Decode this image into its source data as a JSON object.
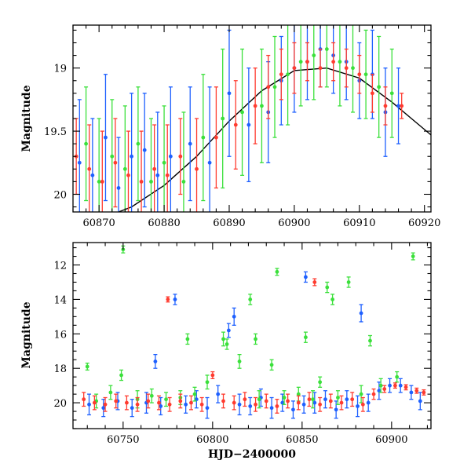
{
  "chart_data": [
    {
      "type": "scatter",
      "title": "",
      "xlabel": "",
      "ylabel": "Magnitude",
      "xlim": [
        60866,
        60921
      ],
      "ylim": [
        20.14,
        18.66
      ],
      "y_inverted": true,
      "xticks": [
        60870,
        60880,
        60890,
        60900,
        60910,
        60920
      ],
      "yticks": [
        19,
        19.5,
        20
      ],
      "ytick_labels": [
        "19",
        "19.5",
        "20"
      ],
      "error_bars": true,
      "grid": false,
      "legend": "none",
      "model_curve": {
        "color": "#000000",
        "x": [
          60866,
          60870,
          60875,
          60880,
          60885,
          60890,
          60895,
          60900,
          60905,
          60910,
          60915,
          60918,
          60921
        ],
        "y": [
          20.26,
          20.2,
          20.1,
          19.93,
          19.7,
          19.42,
          19.18,
          19.02,
          19.0,
          19.08,
          19.27,
          19.4,
          19.53
        ]
      },
      "series": [
        {
          "color": "#1e60ff",
          "x": [
            60867,
            60869,
            60871,
            60873,
            60875,
            60877,
            60879,
            60881,
            60884,
            60887,
            60890,
            60893,
            60896,
            60898,
            60900,
            60902,
            60904,
            60906,
            60908,
            60910,
            60912,
            60914,
            60916
          ],
          "y": [
            19.75,
            19.85,
            19.55,
            19.95,
            19.7,
            19.65,
            19.85,
            19.7,
            19.6,
            19.75,
            19.2,
            19.45,
            19.35,
            19.1,
            19.0,
            18.95,
            18.85,
            18.9,
            18.95,
            19.1,
            19.05,
            19.35,
            19.3
          ],
          "err": [
            0.5,
            0.45,
            0.5,
            0.4,
            0.5,
            0.45,
            0.5,
            0.55,
            0.45,
            0.6,
            0.5,
            0.45,
            0.4,
            0.35,
            0.35,
            0.3,
            0.3,
            0.3,
            0.3,
            0.3,
            0.35,
            0.35,
            0.3
          ]
        },
        {
          "color": "#3be03b",
          "x": [
            60868,
            60870,
            60872,
            60874,
            60876,
            60878,
            60880,
            60883,
            60886,
            60889,
            60892,
            60895,
            60897,
            60899,
            60901,
            60903,
            60905,
            60907,
            60909,
            60911,
            60913,
            60915
          ],
          "y": [
            19.6,
            19.9,
            19.7,
            19.8,
            19.6,
            19.9,
            19.75,
            19.9,
            19.55,
            19.4,
            19.35,
            19.3,
            19.15,
            19.05,
            18.95,
            18.9,
            18.85,
            18.95,
            19.0,
            19.05,
            19.15,
            19.2
          ],
          "err": [
            0.45,
            0.5,
            0.45,
            0.5,
            0.45,
            0.5,
            0.45,
            0.55,
            0.5,
            0.55,
            0.5,
            0.45,
            0.4,
            0.4,
            0.35,
            0.35,
            0.3,
            0.35,
            0.35,
            0.35,
            0.4,
            0.35
          ]
        },
        {
          "color": "#ff3b2f",
          "x": [
            60866.5,
            60868.5,
            60870.5,
            60872.5,
            60874.5,
            60876.5,
            60878.5,
            60880.5,
            60882.5,
            60885,
            60888,
            60891,
            60894,
            60896,
            60898,
            60900,
            60902,
            60904,
            60906,
            60908,
            60910,
            60912,
            60914,
            60916.5
          ],
          "y": [
            19.7,
            19.8,
            19.9,
            19.75,
            19.85,
            19.9,
            19.8,
            19.85,
            19.7,
            19.8,
            19.55,
            19.45,
            19.3,
            19.15,
            19.05,
            19.0,
            18.95,
            19.0,
            18.95,
            19.0,
            19.05,
            19.2,
            19.3,
            19.3
          ],
          "err": [
            0.3,
            0.35,
            0.4,
            0.35,
            0.35,
            0.4,
            0.35,
            0.4,
            0.3,
            0.4,
            0.4,
            0.35,
            0.3,
            0.25,
            0.2,
            0.2,
            0.15,
            0.15,
            0.15,
            0.15,
            0.15,
            0.15,
            0.15,
            0.1
          ]
        }
      ]
    },
    {
      "type": "scatter",
      "title": "",
      "xlabel": "HJD−2400000",
      "ylabel": "Magnitude",
      "xlim": [
        60722,
        60922
      ],
      "ylim": [
        21.5,
        10.7
      ],
      "y_inverted": true,
      "xticks": [
        60750,
        60800,
        60850,
        60900
      ],
      "yticks": [
        12,
        14,
        16,
        18,
        20
      ],
      "error_bars": true,
      "grid": false,
      "legend": "none",
      "series": [
        {
          "color": "#1e60ff",
          "x": [
            60731,
            60739,
            60747,
            60755,
            60763,
            60768,
            60771,
            60779,
            60785,
            60791,
            60797,
            60803,
            60809,
            60812,
            60815,
            60821,
            60827,
            60833,
            60839,
            60845,
            60851,
            60852,
            60857,
            60863,
            60869,
            60875,
            60881,
            60883,
            60887,
            60893,
            60899,
            60905,
            60911,
            60916
          ],
          "y": [
            20.1,
            20.3,
            19.9,
            20.3,
            20.0,
            17.6,
            20.2,
            14.0,
            20.1,
            19.8,
            20.3,
            19.5,
            15.8,
            15.0,
            20.1,
            20.2,
            19.7,
            20.3,
            20.0,
            20.4,
            20.1,
            12.7,
            20.0,
            19.8,
            20.4,
            19.8,
            20.2,
            14.8,
            20.0,
            19.3,
            19.0,
            19.0,
            19.4,
            19.9
          ],
          "err": [
            0.6,
            0.5,
            0.5,
            0.5,
            0.6,
            0.4,
            0.5,
            0.3,
            0.5,
            0.5,
            0.6,
            0.5,
            0.4,
            0.5,
            0.6,
            0.5,
            0.5,
            0.6,
            0.5,
            0.5,
            0.5,
            0.3,
            0.6,
            0.5,
            0.5,
            0.5,
            0.6,
            0.5,
            0.5,
            0.5,
            0.4,
            0.4,
            0.4,
            0.5
          ]
        },
        {
          "color": "#3be03b",
          "x": [
            60730,
            60735,
            60743,
            60749,
            60750,
            60758,
            60766,
            60774,
            60782,
            60786,
            60790,
            60797,
            60806,
            60808,
            60815,
            60821,
            60824,
            60826,
            60833,
            60836,
            60840,
            60848,
            60852,
            60856,
            60860,
            60864,
            60867,
            60870,
            60876,
            60883,
            60888,
            60894,
            60903,
            60912
          ],
          "y": [
            17.9,
            19.9,
            19.4,
            18.4,
            11.1,
            19.8,
            19.6,
            19.8,
            19.7,
            16.3,
            19.5,
            18.8,
            16.3,
            16.6,
            17.6,
            14.0,
            16.3,
            19.8,
            17.8,
            12.4,
            19.7,
            19.5,
            16.2,
            19.8,
            18.8,
            13.3,
            14.0,
            19.7,
            13.0,
            19.5,
            16.4,
            19.0,
            18.5,
            11.5
          ],
          "err": [
            0.2,
            0.4,
            0.4,
            0.3,
            0.2,
            0.5,
            0.4,
            0.4,
            0.4,
            0.3,
            0.4,
            0.4,
            0.4,
            0.3,
            0.4,
            0.3,
            0.3,
            0.5,
            0.3,
            0.2,
            0.4,
            0.4,
            0.3,
            0.5,
            0.3,
            0.3,
            0.3,
            0.4,
            0.3,
            0.5,
            0.3,
            0.4,
            0.3,
            0.2
          ]
        },
        {
          "color": "#ff3b2f",
          "x": [
            60728,
            60734,
            60740,
            60746,
            60752,
            60758,
            60764,
            60770,
            60775,
            60776,
            60782,
            60788,
            60794,
            60800,
            60806,
            60812,
            60818,
            60824,
            60830,
            60836,
            60842,
            60848,
            60854,
            60857,
            60860,
            60866,
            60872,
            60878,
            60884,
            60890,
            60896,
            60902,
            60908,
            60914,
            60918
          ],
          "y": [
            19.8,
            20.0,
            20.1,
            19.9,
            20.0,
            20.1,
            19.9,
            20.0,
            14.0,
            20.1,
            19.9,
            20.0,
            20.1,
            18.4,
            19.9,
            20.0,
            19.8,
            20.1,
            19.9,
            20.2,
            19.9,
            20.0,
            19.8,
            13.0,
            20.1,
            19.9,
            20.0,
            19.8,
            20.1,
            19.5,
            19.2,
            19.0,
            19.1,
            19.3,
            19.4
          ],
          "err": [
            0.4,
            0.4,
            0.4,
            0.4,
            0.4,
            0.4,
            0.4,
            0.4,
            0.15,
            0.4,
            0.4,
            0.4,
            0.4,
            0.2,
            0.4,
            0.4,
            0.4,
            0.4,
            0.4,
            0.4,
            0.4,
            0.4,
            0.4,
            0.2,
            0.4,
            0.4,
            0.4,
            0.4,
            0.4,
            0.3,
            0.2,
            0.15,
            0.15,
            0.15,
            0.15
          ]
        }
      ]
    }
  ]
}
